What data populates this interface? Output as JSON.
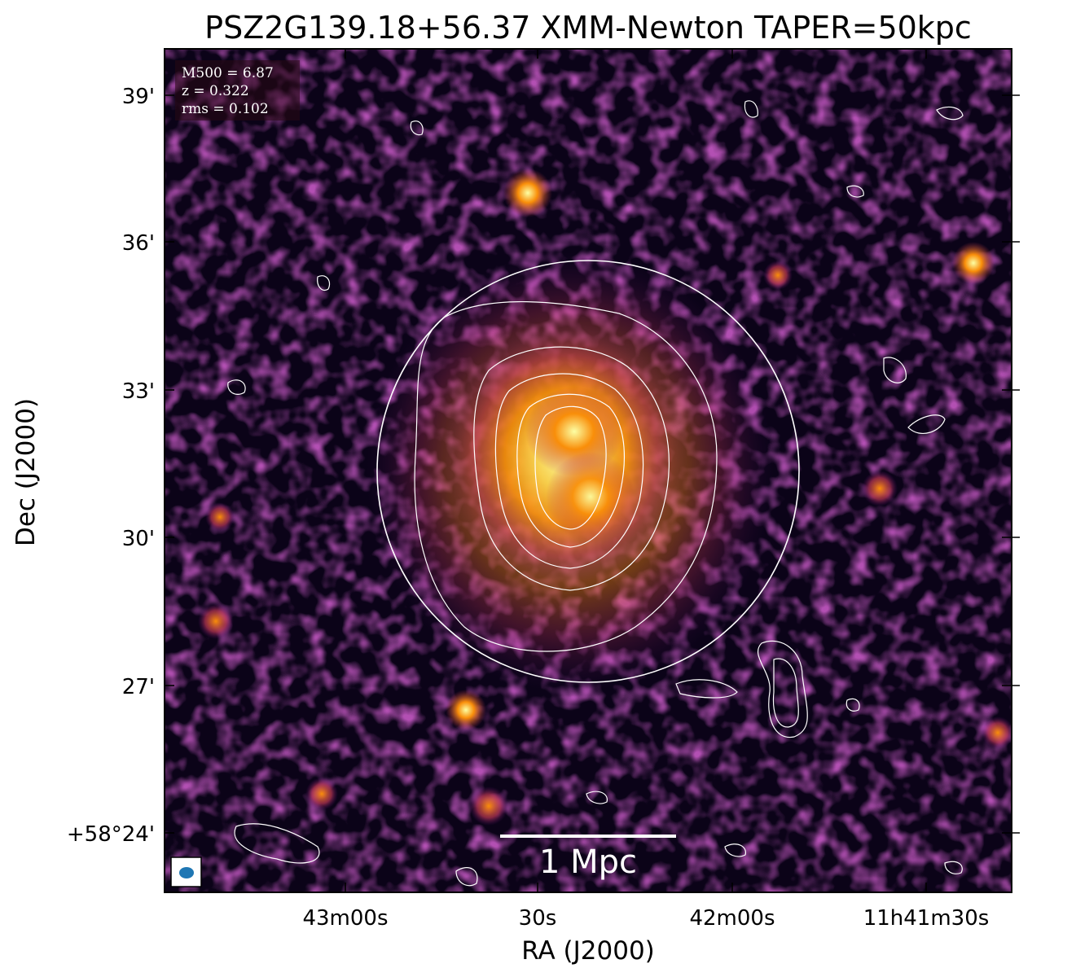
{
  "figure": {
    "title": "PSZ2G139.18+56.37 XMM-Newton TAPER=50kpc",
    "x_axis_label": "RA (J2000)",
    "y_axis_label": "Dec (J2000)",
    "x_ticks": [
      "43m00s",
      "30s",
      "42m00s",
      "11h41m30s"
    ],
    "y_ticks": [
      "39'",
      "36'",
      "33'",
      "30'",
      "27'",
      "+58°24'"
    ],
    "info_box": {
      "mass": "M500 = 6.87",
      "redshift": "z = 0.322",
      "rms": "rms = 0.102"
    },
    "scale_bar_label": "1 Mpc",
    "colormap": [
      "#000004",
      "#420a68",
      "#932667",
      "#dd513a",
      "#fca50a",
      "#fcffa4"
    ],
    "contour_color": "#ffffff",
    "beam_color": "#1f77b4"
  }
}
